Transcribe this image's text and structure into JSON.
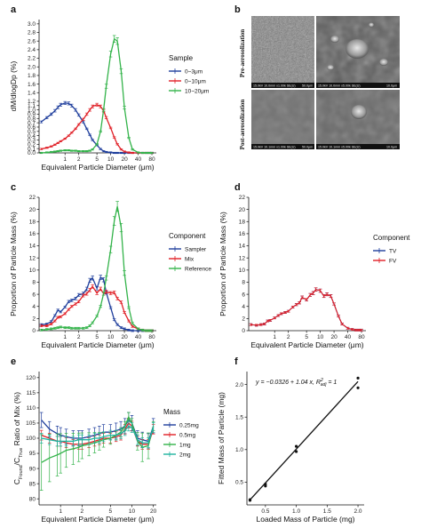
{
  "panels": {
    "a": "a",
    "b": "b",
    "c": "c",
    "d": "d",
    "e": "e",
    "f": "f"
  },
  "sem": {
    "row1_label": "Pre-aerosolization",
    "row2_label": "Post-aerosolization",
    "meta": [
      "15.0kV 10.0mm x1.00k SE(U)",
      "50.0μm",
      "15.0kV 10.0mm x5.00k SE(U)",
      "10.0μm",
      "15.0kV 10.1mm x1.00k SE(U)",
      "50.0μm",
      "15.0kV 10.1mm x5.00k SE(U)",
      "10.0μm"
    ]
  },
  "colors": {
    "blue": "#1f3e9c",
    "red": "#e01f26",
    "green": "#33b34a",
    "black": "#111111"
  },
  "chart_data": [
    {
      "id": "a",
      "type": "line",
      "xlabel": "Equivalent Particle Diameter (μm)",
      "ylabel": "dM/dlogDp (%)",
      "xscale": "log",
      "xlim": [
        0.27,
        100
      ],
      "xticks": [
        1,
        2,
        5,
        10,
        20,
        40,
        80
      ],
      "ylim": [
        0,
        3.1
      ],
      "yticks": [
        "0.0",
        "0.1",
        "0.2",
        "0.3",
        "0.4",
        "0.5",
        "0.6",
        "0.7",
        "0.8",
        "0.9",
        "1.0",
        "1.1",
        "1.2",
        "1.3",
        "1.4",
        "1.5",
        "1.6",
        "1.7",
        "1.8",
        "1.9",
        "2.0",
        "2.1",
        "2.2",
        "2.3",
        "2.4",
        "2.5",
        "2.6",
        "2.7",
        "2.8",
        "2.9",
        "3.0",
        "3.1"
      ],
      "yticks_visible": [
        "0.0",
        "0.1",
        "0.2",
        "0.3",
        "0.4",
        "0.5",
        "0.6",
        "0.7",
        "0.8",
        "0.9",
        "1.0",
        "1.1",
        "1.2",
        "1.4",
        "1.6",
        "1.8",
        "2.0",
        "2.2",
        "2.4",
        "2.6",
        "2.8",
        "3.0"
      ],
      "legend_title": "Sample",
      "legend_position": "right",
      "x": [
        0.3,
        0.4,
        0.5,
        0.6,
        0.7,
        0.8,
        1.0,
        1.2,
        1.4,
        1.7,
        2.0,
        2.5,
        3.0,
        3.5,
        4.0,
        5.0,
        6.0,
        7.0,
        8.0,
        10,
        12,
        14,
        17,
        20,
        25,
        30,
        40,
        50,
        60,
        70,
        80
      ],
      "series": [
        {
          "name": "0~3μm",
          "color": "#1f3e9c",
          "values": [
            0.72,
            0.82,
            0.9,
            0.98,
            1.06,
            1.12,
            1.16,
            1.15,
            1.1,
            1.0,
            0.88,
            0.72,
            0.56,
            0.42,
            0.3,
            0.18,
            0.09,
            0.04,
            0.02,
            0.01,
            0.0,
            0.0,
            0.0,
            0.0,
            0.0,
            0.0,
            0.0,
            0.0,
            0.0,
            0.0,
            0.0
          ]
        },
        {
          "name": "0~10μm",
          "color": "#e01f26",
          "values": [
            0.09,
            0.12,
            0.15,
            0.19,
            0.23,
            0.27,
            0.33,
            0.4,
            0.47,
            0.56,
            0.66,
            0.78,
            0.9,
            1.0,
            1.08,
            1.12,
            1.08,
            0.98,
            0.82,
            0.58,
            0.36,
            0.2,
            0.08,
            0.03,
            0.01,
            0.0,
            0.0,
            0.0,
            0.0,
            0.0,
            0.0
          ]
        },
        {
          "name": "10~20μm",
          "color": "#33b34a",
          "values": [
            0.0,
            0.01,
            0.02,
            0.03,
            0.04,
            0.05,
            0.06,
            0.06,
            0.05,
            0.05,
            0.04,
            0.04,
            0.04,
            0.05,
            0.08,
            0.2,
            0.5,
            1.0,
            1.55,
            2.3,
            2.65,
            2.6,
            1.9,
            1.05,
            0.35,
            0.08,
            0.01,
            0.0,
            0.0,
            0.0,
            0.0
          ]
        }
      ]
    },
    {
      "id": "c",
      "type": "line",
      "xlabel": "Equivalent Particle Diameter (μm)",
      "ylabel": "Proportion of Particle Mass (%)",
      "xscale": "log",
      "xlim": [
        0.27,
        100
      ],
      "xticks": [
        1,
        2,
        5,
        10,
        20,
        40,
        80
      ],
      "ylim": [
        0,
        22
      ],
      "yticks": [
        0,
        2,
        4,
        6,
        8,
        10,
        12,
        14,
        16,
        18,
        20,
        22
      ],
      "legend_title": "Component",
      "legend_position": "right",
      "x": [
        0.3,
        0.4,
        0.5,
        0.6,
        0.7,
        0.8,
        1.0,
        1.2,
        1.4,
        1.7,
        2.0,
        2.5,
        3.0,
        3.5,
        4.0,
        5.0,
        6.0,
        7.0,
        8.0,
        10,
        12,
        14,
        17,
        20,
        25,
        30,
        40,
        50,
        60,
        70,
        80
      ],
      "series": [
        {
          "name": "Sampler",
          "color": "#1f3e9c",
          "values": [
            1.0,
            1.1,
            1.5,
            2.5,
            3.4,
            3.1,
            3.9,
            4.8,
            5.0,
            5.3,
            5.9,
            6.1,
            6.9,
            8.3,
            8.7,
            7.0,
            8.8,
            8.4,
            6.3,
            3.8,
            1.8,
            1.0,
            0.5,
            0.3,
            0.1,
            0.0,
            0.0,
            0.0,
            0.0,
            0.0,
            0.0
          ]
        },
        {
          "name": "Mix",
          "color": "#e01f26",
          "values": [
            0.8,
            0.8,
            1.1,
            1.6,
            2.2,
            2.3,
            2.8,
            3.5,
            4.0,
            4.4,
            4.8,
            5.8,
            6.1,
            6.7,
            7.3,
            6.2,
            6.9,
            6.1,
            6.4,
            6.2,
            6.3,
            5.3,
            4.7,
            3.0,
            1.6,
            0.7,
            0.3,
            0.1,
            0.0,
            0.0,
            0.0
          ]
        },
        {
          "name": "Reference",
          "color": "#33b34a",
          "values": [
            0.1,
            0.2,
            0.3,
            0.4,
            0.5,
            0.6,
            0.5,
            0.5,
            0.4,
            0.4,
            0.4,
            0.4,
            0.5,
            0.8,
            1.3,
            2.4,
            4.0,
            6.1,
            8.7,
            13.4,
            18.1,
            20.5,
            17.0,
            9.5,
            3.8,
            1.2,
            0.3,
            0.1,
            0.0,
            0.0,
            0.0
          ]
        }
      ]
    },
    {
      "id": "d",
      "type": "line",
      "xlabel": "Equivalent Particle Diameter (μm)",
      "ylabel": "Proportion of Particle Mass (%)",
      "xscale": "log",
      "xlim": [
        0.27,
        100
      ],
      "xticks": [
        1,
        2,
        5,
        10,
        20,
        40,
        80
      ],
      "ylim": [
        0,
        22
      ],
      "yticks": [
        0,
        2,
        4,
        6,
        8,
        10,
        12,
        14,
        16,
        18,
        20,
        22
      ],
      "legend_title": "Component",
      "legend_position": "right",
      "x": [
        0.3,
        0.4,
        0.5,
        0.6,
        0.7,
        0.8,
        1.0,
        1.2,
        1.4,
        1.7,
        2.0,
        2.5,
        3.0,
        3.5,
        4.0,
        5.0,
        6.0,
        7.0,
        8.0,
        10,
        12,
        14,
        17,
        20,
        25,
        30,
        40,
        50,
        60,
        70,
        80
      ],
      "series": [
        {
          "name": "TV",
          "color": "#1f3e9c",
          "values": [
            1.0,
            0.9,
            1.0,
            1.1,
            1.6,
            1.7,
            2.1,
            2.5,
            2.8,
            3.0,
            3.2,
            3.9,
            4.3,
            4.6,
            5.5,
            5.1,
            5.9,
            6.2,
            6.8,
            6.6,
            5.7,
            6.0,
            5.7,
            4.4,
            2.4,
            1.1,
            0.4,
            0.2,
            0.1,
            0.1,
            0.1
          ]
        },
        {
          "name": "FV",
          "color": "#e01f26",
          "values": [
            1.0,
            0.9,
            1.0,
            1.1,
            1.6,
            1.7,
            2.1,
            2.5,
            2.8,
            3.0,
            3.2,
            3.9,
            4.3,
            4.6,
            5.5,
            5.1,
            5.9,
            6.2,
            6.8,
            6.6,
            5.7,
            6.0,
            5.7,
            4.4,
            2.4,
            1.1,
            0.4,
            0.2,
            0.1,
            0.1,
            0.1
          ]
        }
      ]
    },
    {
      "id": "e",
      "type": "line",
      "xlabel": "Equivalent Particle Diameter (μm)",
      "ylabel": "C_Found/C_True Ratio of Mix (%)",
      "ylabel_parts": [
        "C",
        "Found",
        "/C",
        "True",
        " Ratio of Mix (%)"
      ],
      "xscale": "log",
      "xlim": [
        0.5,
        22
      ],
      "xticks": [
        1,
        2,
        5,
        10,
        20
      ],
      "ylim": [
        78,
        122
      ],
      "yticks": [
        80,
        85,
        90,
        95,
        100,
        105,
        110,
        115,
        120
      ],
      "legend_title": "Mass",
      "legend_position": "right",
      "x": [
        0.54,
        0.7,
        0.9,
        1.0,
        1.2,
        1.5,
        1.8,
        2.0,
        2.5,
        3.0,
        3.5,
        4.0,
        5.0,
        6.0,
        7.0,
        8.0,
        9.0,
        10,
        12,
        14,
        17,
        20
      ],
      "series": [
        {
          "name": "0.25mg",
          "color": "#1f3e9c",
          "values": [
            106,
            103,
            101.5,
            101,
            100.5,
            100,
            100,
            100,
            100.5,
            101,
            101.5,
            102,
            102,
            102.5,
            103,
            104,
            106,
            105,
            100,
            99.5,
            99,
            104
          ]
        },
        {
          "name": "0.5mg",
          "color": "#e01f26",
          "values": [
            101,
            100,
            99,
            99,
            98.5,
            98,
            98,
            98,
            98.5,
            99,
            99.5,
            100,
            100,
            100.5,
            101,
            103,
            105,
            104,
            99,
            98,
            98,
            103
          ]
        },
        {
          "name": "1mg",
          "color": "#33b34a",
          "values": [
            92,
            93.5,
            94.5,
            95,
            96,
            96.5,
            97,
            97.5,
            98,
            98.5,
            99,
            99.5,
            100,
            101,
            102,
            104,
            107,
            105,
            99,
            97,
            97.5,
            104
          ]
        },
        {
          "name": "2mg",
          "color": "#1fb3a0",
          "values": [
            100,
            99.5,
            99,
            99,
            99,
            99,
            99.5,
            99.5,
            99.5,
            100,
            100,
            100.5,
            101,
            101,
            101.5,
            102.5,
            104,
            103.5,
            99.5,
            98.5,
            98.5,
            103.5
          ]
        }
      ]
    },
    {
      "id": "f",
      "type": "scatter",
      "xlabel": "Loaded Mass of Particle (mg)",
      "ylabel": "Fitted Mass of Particle (mg)",
      "xlim": [
        0.2,
        2.1
      ],
      "xticks": [
        "0.5",
        "1.0",
        "1.5",
        "2.0"
      ],
      "ylim": [
        0.15,
        2.2
      ],
      "yticks": [
        "0.5",
        "1.0",
        "1.5",
        "2.0"
      ],
      "annotation_prefix": "y = −0.0326 + 1.04 x,",
      "annotation_r2": "R",
      "annotation_r2_sup": "2",
      "annotation_r2_sub": "adj",
      "annotation_suffix": " = 1",
      "fit": {
        "intercept": -0.0326,
        "slope": 1.04
      },
      "points": [
        {
          "x": 0.25,
          "y": 0.22
        },
        {
          "x": 0.25,
          "y": 0.23
        },
        {
          "x": 0.5,
          "y": 0.44
        },
        {
          "x": 0.5,
          "y": 0.47
        },
        {
          "x": 1.0,
          "y": 0.97
        },
        {
          "x": 1.0,
          "y": 1.05
        },
        {
          "x": 2.0,
          "y": 1.95
        },
        {
          "x": 2.0,
          "y": 2.1
        }
      ]
    }
  ]
}
